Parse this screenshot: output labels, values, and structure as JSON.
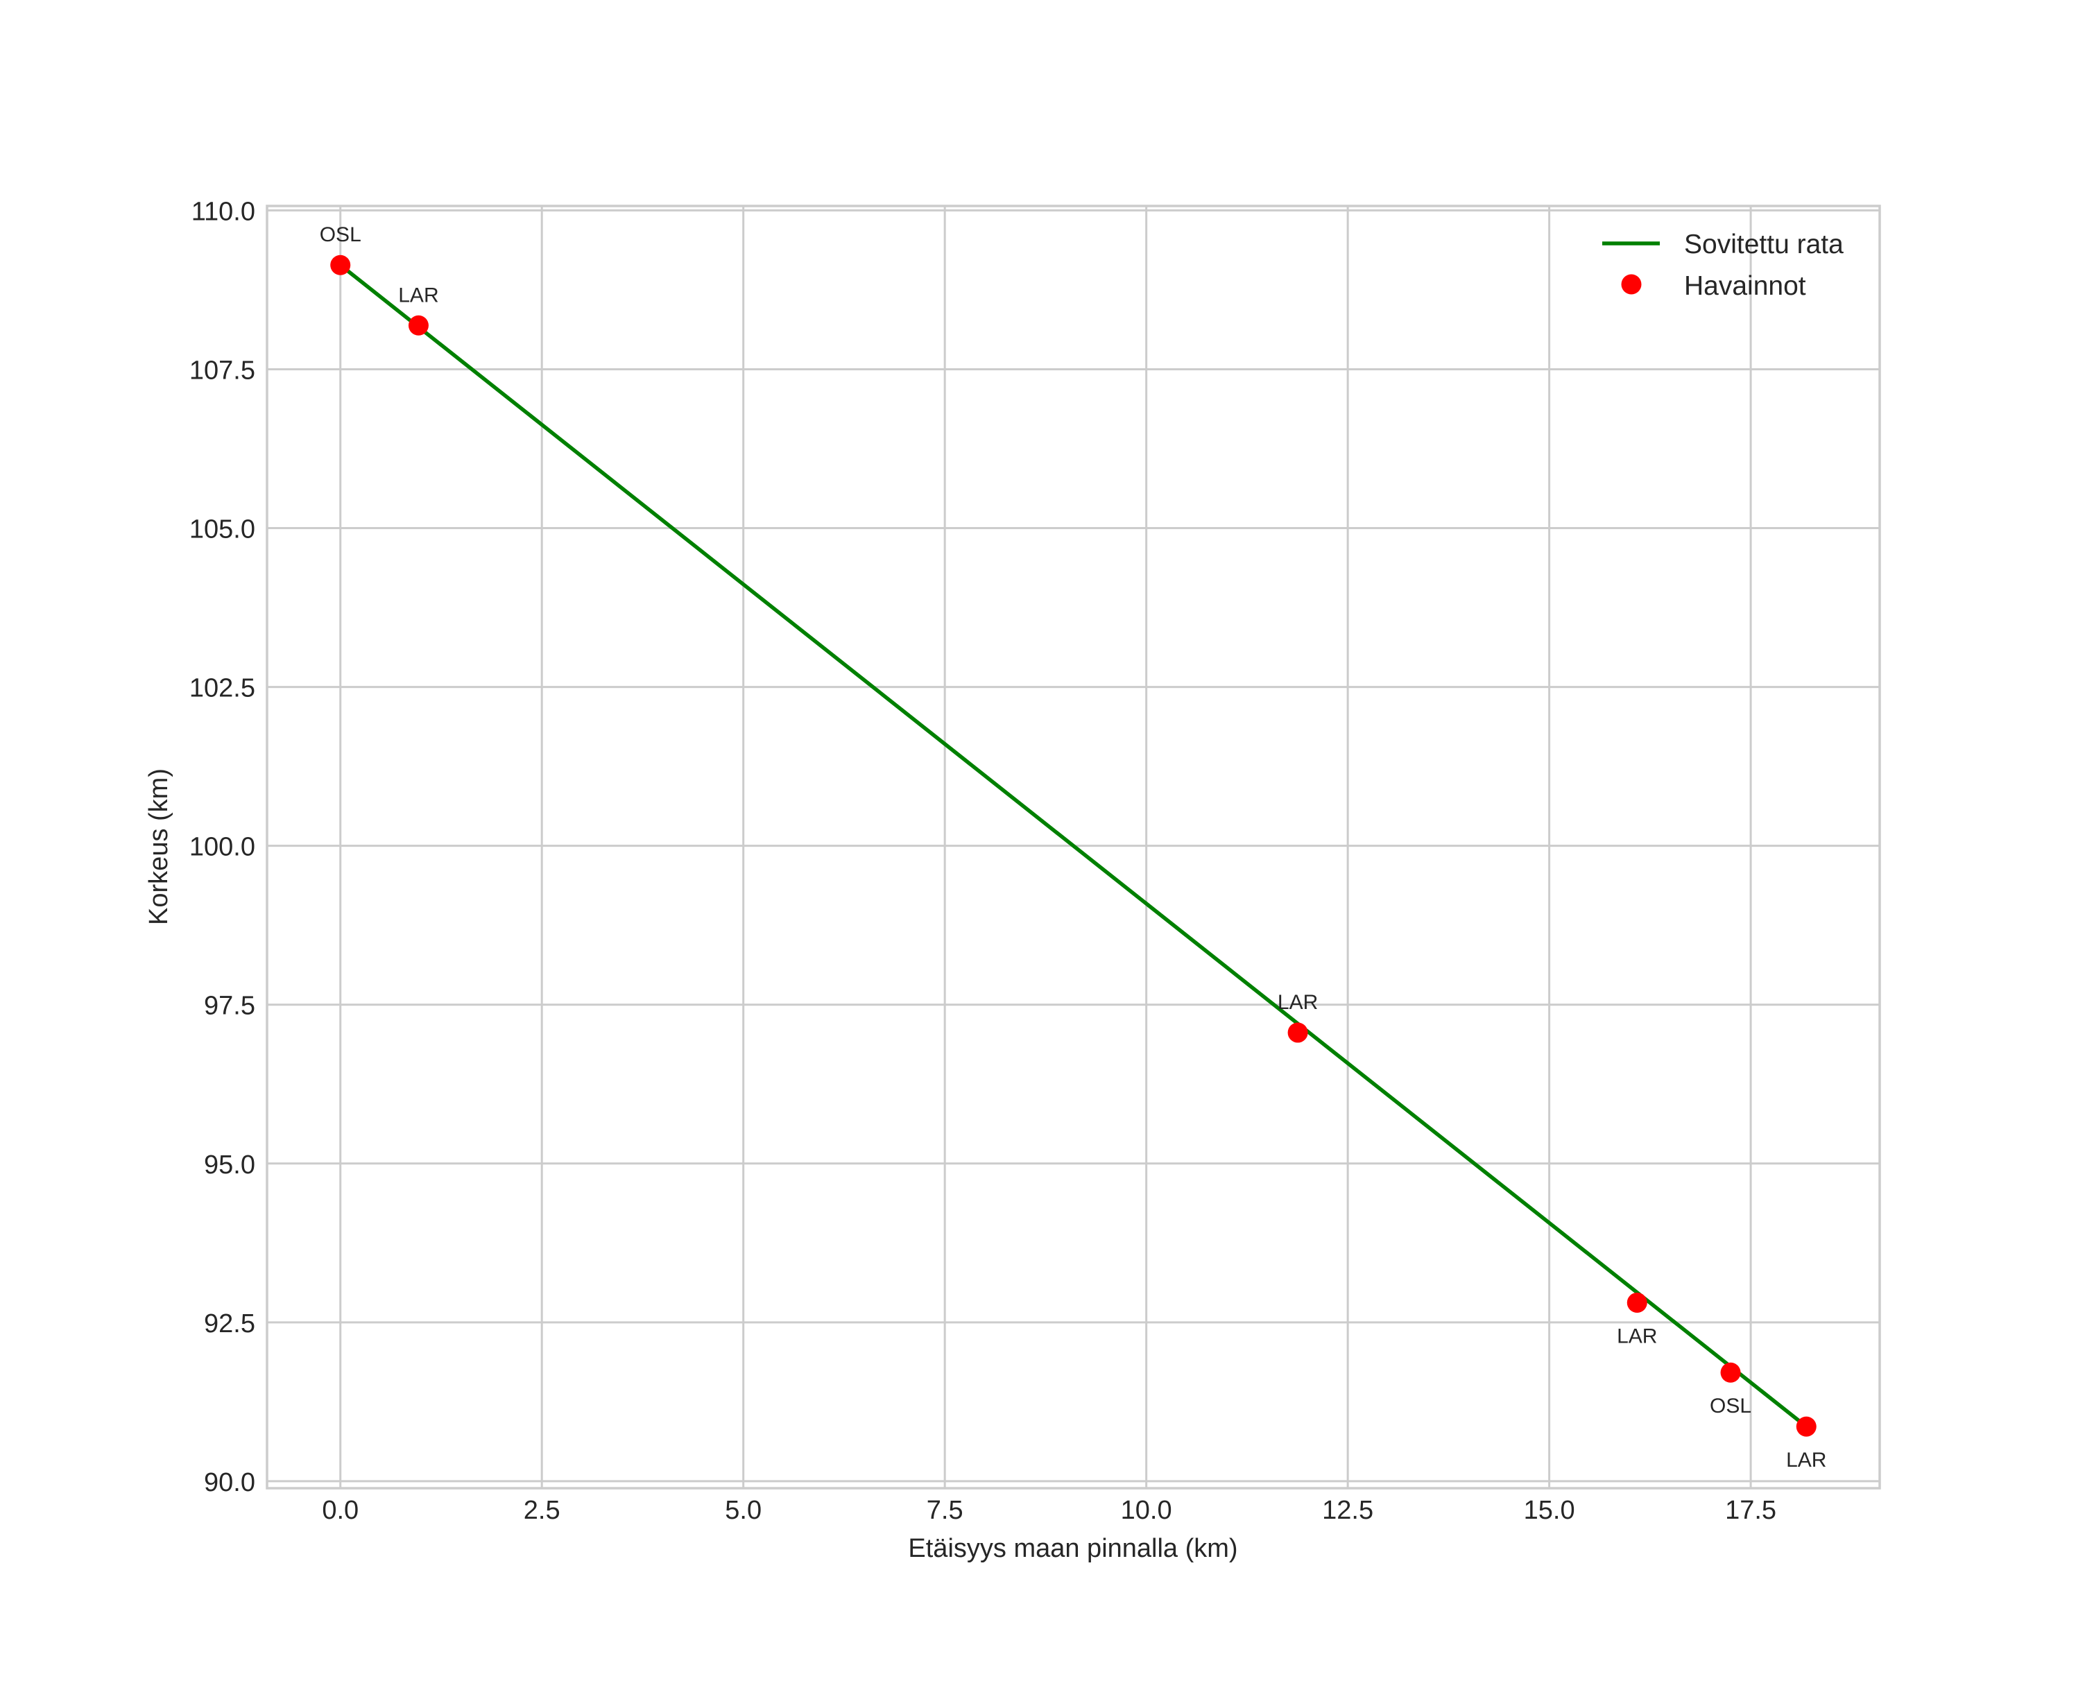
{
  "chart_data": {
    "type": "line",
    "title": "",
    "xlabel": "Etäisyys maan pinnalla (km)",
    "ylabel": "Korkeus (km)",
    "xlim": [
      -0.91,
      19.1
    ],
    "ylim": [
      89.89,
      110.07
    ],
    "grid": true,
    "legend_position": "upper right",
    "xticks": [
      0.0,
      2.5,
      5.0,
      7.5,
      10.0,
      12.5,
      15.0,
      17.5
    ],
    "xtick_labels": [
      "0.0",
      "2.5",
      "5.0",
      "7.5",
      "10.0",
      "12.5",
      "15.0",
      "17.5"
    ],
    "yticks": [
      90.0,
      92.5,
      95.0,
      97.5,
      100.0,
      102.5,
      105.0,
      107.5,
      110.0
    ],
    "ytick_labels": [
      "90.0",
      "92.5",
      "95.0",
      "97.5",
      "100.0",
      "102.5",
      "105.0",
      "107.5",
      "110.0"
    ],
    "series": [
      {
        "name": "Sovitettu rata",
        "kind": "line",
        "color": "#008000",
        "x": [
          0.0,
          18.19
        ],
        "y": [
          109.14,
          90.86
        ]
      },
      {
        "name": "Havainnot",
        "kind": "scatter",
        "color": "#ff0000",
        "x": [
          0.0,
          0.97,
          11.88,
          16.09,
          17.25,
          18.19
        ],
        "y": [
          109.14,
          108.19,
          97.06,
          92.81,
          91.71,
          90.86
        ],
        "labels": [
          "OSL",
          "LAR",
          "LAR",
          "LAR",
          "OSL",
          "LAR"
        ],
        "label_positions": [
          "above",
          "above",
          "above",
          "below",
          "below",
          "below"
        ]
      }
    ]
  },
  "legend": {
    "items": [
      {
        "label": "Sovitettu rata",
        "symbol": "line",
        "color": "#008000"
      },
      {
        "label": "Havainnot",
        "symbol": "dot",
        "color": "#ff0000"
      }
    ]
  },
  "style": {
    "grid_color": "#cccccc",
    "text_color": "#262626",
    "background": "#ffffff"
  }
}
